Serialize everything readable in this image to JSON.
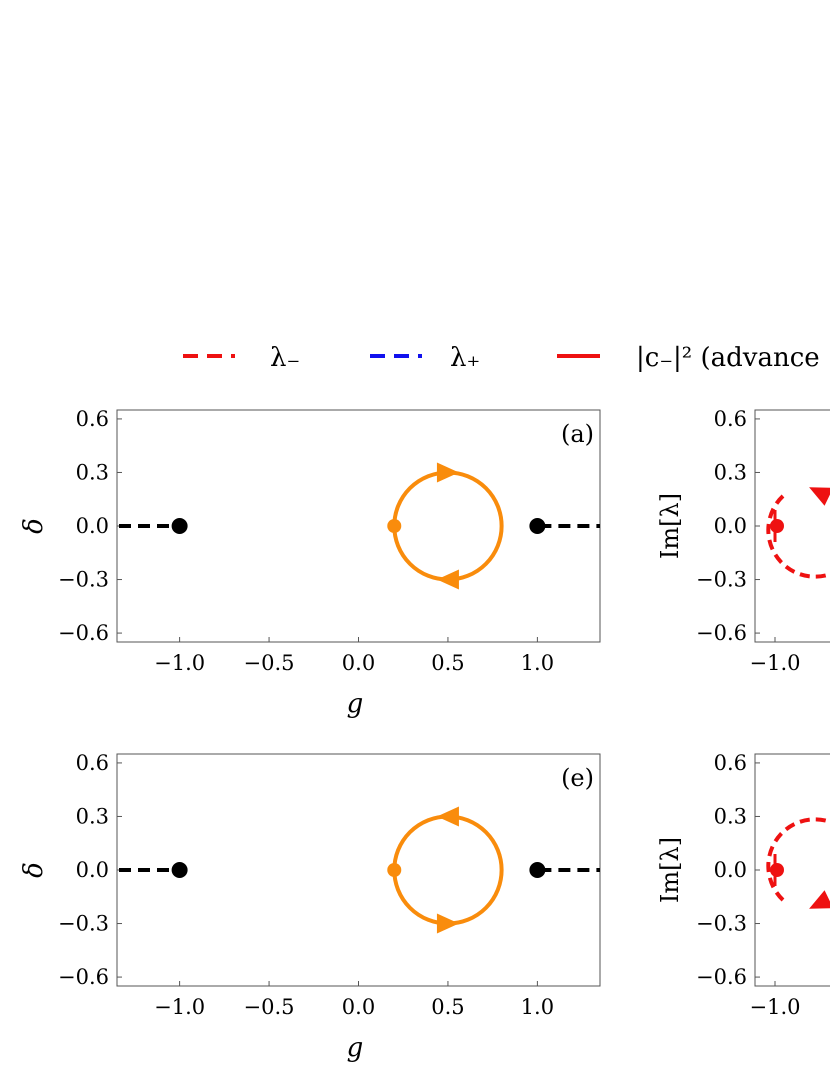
{
  "legend": {
    "items": [
      {
        "label": "λ₋",
        "color": "#ee1111",
        "style": "dashed"
      },
      {
        "label": "λ₊",
        "color": "#1111ee",
        "style": "dashed"
      },
      {
        "label": "|c₋|² (advance",
        "color": "#ee1111",
        "style": "solid"
      }
    ]
  },
  "colors": {
    "orange": "#f98c0c",
    "black": "#000000",
    "red": "#ee1111"
  },
  "chart_data": [
    {
      "type": "scatter",
      "panel_tag": "(a)",
      "xlabel": "g",
      "ylabel": "δ",
      "xlim": [
        -1.35,
        1.35
      ],
      "ylim": [
        -0.65,
        0.65
      ],
      "xticks": [
        -1.0,
        -0.5,
        0.0,
        0.5,
        1.0
      ],
      "xtick_labels": [
        "−1.0",
        "−0.5",
        "0.0",
        "0.5",
        "1.0"
      ],
      "yticks": [
        0.6,
        0.3,
        0.0,
        -0.3,
        -0.6
      ],
      "ytick_labels": [
        "0.6",
        "0.3",
        "0.0",
        "−0.3",
        "−0.6"
      ],
      "exceptional_points": [
        {
          "x": -1.0,
          "y": 0.0
        },
        {
          "x": 1.0,
          "y": 0.0
        }
      ],
      "branch_cuts": [
        {
          "from": [
            -1.35,
            0.0
          ],
          "to": [
            -1.0,
            0.0
          ]
        },
        {
          "from": [
            1.0,
            0.0
          ],
          "to": [
            1.35,
            0.0
          ]
        }
      ],
      "loop": {
        "center": [
          0.5,
          0.0
        ],
        "radius": 0.3,
        "start": [
          0.2,
          0.0
        ],
        "direction": "clockwise"
      }
    },
    {
      "type": "scatter",
      "panel_tag": "",
      "xlabel": "",
      "ylabel": "Im[λ]",
      "ylim": [
        -0.65,
        0.65
      ],
      "xticks": [
        -1.0
      ],
      "xtick_labels": [
        "−1.0"
      ],
      "yticks": [
        0.6,
        0.3,
        0.0,
        -0.3,
        -0.6
      ],
      "ytick_labels": [
        "0.6",
        "0.3",
        "0.0",
        "−0.3",
        "−0.6"
      ],
      "series": [
        {
          "name": "λ₋",
          "style": "dashed",
          "start": [
            -1.0,
            0.0
          ],
          "direction": "counterclockwise"
        }
      ]
    },
    {
      "type": "scatter",
      "panel_tag": "(e)",
      "xlabel": "g",
      "ylabel": "δ",
      "xlim": [
        -1.35,
        1.35
      ],
      "ylim": [
        -0.65,
        0.65
      ],
      "xticks": [
        -1.0,
        -0.5,
        0.0,
        0.5,
        1.0
      ],
      "xtick_labels": [
        "−1.0",
        "−0.5",
        "0.0",
        "0.5",
        "1.0"
      ],
      "yticks": [
        0.6,
        0.3,
        0.0,
        -0.3,
        -0.6
      ],
      "ytick_labels": [
        "0.6",
        "0.3",
        "0.0",
        "−0.3",
        "−0.6"
      ],
      "exceptional_points": [
        {
          "x": -1.0,
          "y": 0.0
        },
        {
          "x": 1.0,
          "y": 0.0
        }
      ],
      "branch_cuts": [
        {
          "from": [
            -1.35,
            0.0
          ],
          "to": [
            -1.0,
            0.0
          ]
        },
        {
          "from": [
            1.0,
            0.0
          ],
          "to": [
            1.35,
            0.0
          ]
        }
      ],
      "loop": {
        "center": [
          0.5,
          0.0
        ],
        "radius": 0.3,
        "start": [
          0.2,
          0.0
        ],
        "direction": "counterclockwise"
      }
    },
    {
      "type": "scatter",
      "panel_tag": "",
      "xlabel": "",
      "ylabel": "Im[λ]",
      "ylim": [
        -0.65,
        0.65
      ],
      "xticks": [
        -1.0
      ],
      "xtick_labels": [
        "−1.0"
      ],
      "yticks": [
        0.6,
        0.3,
        0.0,
        -0.3,
        -0.6
      ],
      "ytick_labels": [
        "0.6",
        "0.3",
        "0.0",
        "−0.3",
        "−0.6"
      ],
      "series": [
        {
          "name": "λ₋",
          "style": "dashed",
          "start": [
            -1.0,
            0.0
          ],
          "direction": "clockwise"
        }
      ]
    }
  ]
}
